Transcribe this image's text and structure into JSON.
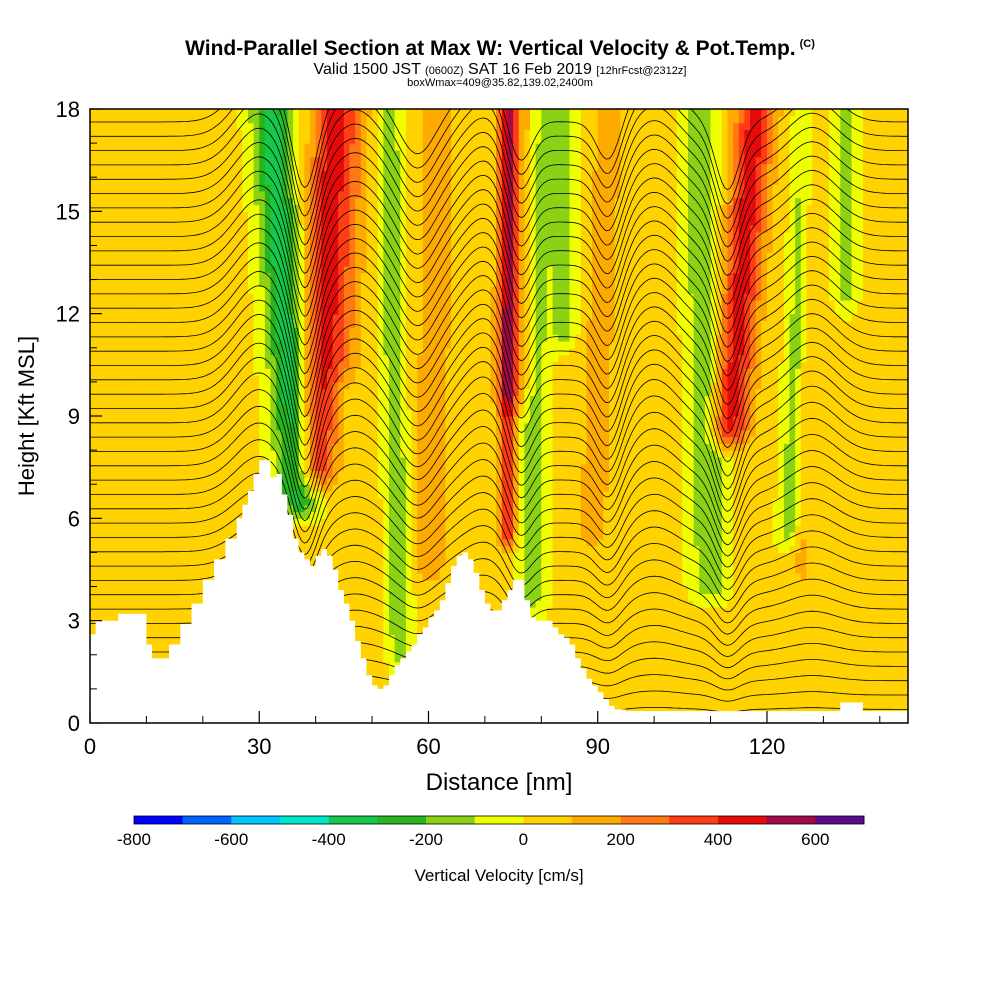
{
  "title": {
    "main": "Wind-Parallel Section at Max W: Vertical Velocity & Pot.Temp.",
    "copyright": "(C)",
    "valid_prefix": "Valid 1500 JST",
    "valid_utc": "(0600Z)",
    "valid_date": "SAT 16 Feb 2019",
    "forecast": "[12hrFcst@2312z]",
    "box_info": "boxWmax=409@35.82,139.02,2400m"
  },
  "chart_data": {
    "type": "heatmap",
    "xlabel": "Distance [nm]",
    "ylabel": "Height [Kft MSL]",
    "xlim": [
      0,
      145
    ],
    "ylim": [
      0,
      18
    ],
    "x_ticks": [
      0,
      30,
      60,
      90,
      120
    ],
    "x_minor_ticks": [
      10,
      20,
      40,
      50,
      70,
      80,
      100,
      110,
      130,
      140
    ],
    "y_ticks": [
      0,
      3,
      6,
      9,
      12,
      15,
      18
    ],
    "y_minor_ticks": [
      1,
      2,
      4,
      5,
      7,
      8,
      10,
      11,
      13,
      14,
      16,
      17
    ],
    "background_value_cm_s": 25,
    "colorbar": {
      "label": "Vertical Velocity [cm/s]",
      "min": -800,
      "max": 700,
      "step": 100,
      "tick_labels": [
        -800,
        -600,
        -400,
        -200,
        0,
        200,
        400,
        600
      ],
      "colors": [
        "#0000ff",
        "#0064ff",
        "#00c8ff",
        "#00e6c8",
        "#16c84a",
        "#28b41e",
        "#8cd214",
        "#f0ff00",
        "#ffd200",
        "#ffaa00",
        "#ff7814",
        "#ff3c14",
        "#e60a0a",
        "#a00a46",
        "#5a0a8c"
      ]
    },
    "terrain_kft": [
      [
        0,
        2.6
      ],
      [
        1,
        3.0
      ],
      [
        5,
        3.2
      ],
      [
        8,
        3.2
      ],
      [
        10,
        2.3
      ],
      [
        11,
        1.9
      ],
      [
        13,
        1.9
      ],
      [
        14,
        2.3
      ],
      [
        16,
        2.9
      ],
      [
        18,
        3.5
      ],
      [
        20,
        4.2
      ],
      [
        22,
        4.8
      ],
      [
        24,
        5.4
      ],
      [
        26,
        6.0
      ],
      [
        27,
        6.4
      ],
      [
        28,
        6.8
      ],
      [
        29,
        7.3
      ],
      [
        30,
        7.7
      ],
      [
        31,
        7.7
      ],
      [
        32,
        7.2
      ],
      [
        33,
        7.3
      ],
      [
        34,
        6.7
      ],
      [
        35,
        6.1
      ],
      [
        36,
        5.4
      ],
      [
        37,
        5.0
      ],
      [
        38,
        4.8
      ],
      [
        39,
        4.6
      ],
      [
        40,
        4.9
      ],
      [
        41,
        5.1
      ],
      [
        42,
        4.9
      ],
      [
        43,
        4.5
      ],
      [
        44,
        3.9
      ],
      [
        45,
        3.5
      ],
      [
        46,
        3.0
      ],
      [
        47,
        2.4
      ],
      [
        48,
        1.9
      ],
      [
        49,
        1.4
      ],
      [
        50,
        1.1
      ],
      [
        51,
        1.0
      ],
      [
        52,
        1.1
      ],
      [
        53,
        1.4
      ],
      [
        54,
        1.7
      ],
      [
        55,
        1.9
      ],
      [
        56,
        2.1
      ],
      [
        57,
        2.3
      ],
      [
        58,
        2.6
      ],
      [
        59,
        2.8
      ],
      [
        60,
        3.1
      ],
      [
        61,
        3.3
      ],
      [
        62,
        3.6
      ],
      [
        63,
        4.1
      ],
      [
        64,
        4.6
      ],
      [
        65,
        4.9
      ],
      [
        66,
        5.0
      ],
      [
        67,
        4.8
      ],
      [
        68,
        4.4
      ],
      [
        69,
        3.9
      ],
      [
        70,
        3.5
      ],
      [
        71,
        3.3
      ],
      [
        72,
        3.3
      ],
      [
        73,
        3.6
      ],
      [
        74,
        3.9
      ],
      [
        75,
        4.2
      ],
      [
        76,
        4.2
      ],
      [
        77,
        3.6
      ],
      [
        78,
        3.1
      ],
      [
        79,
        3.0
      ],
      [
        80,
        3.0
      ],
      [
        81,
        3.0
      ],
      [
        82,
        2.8
      ],
      [
        83,
        2.6
      ],
      [
        84,
        2.5
      ],
      [
        85,
        2.3
      ],
      [
        86,
        1.9
      ],
      [
        87,
        1.6
      ],
      [
        88,
        1.3
      ],
      [
        89,
        1.1
      ],
      [
        90,
        0.9
      ],
      [
        91,
        0.7
      ],
      [
        92,
        0.5
      ],
      [
        93,
        0.4
      ],
      [
        95,
        0.35
      ],
      [
        132,
        0.35
      ],
      [
        133,
        0.6
      ],
      [
        136,
        0.6
      ],
      [
        137,
        0.35
      ],
      [
        145,
        0.35
      ]
    ],
    "updrafts": [
      {
        "x": 40,
        "x_top": 43,
        "half_width_nm": 3.5,
        "z_bottom": 6.8,
        "peak_cm_s": 400
      },
      {
        "x": 45,
        "x_top": 47,
        "half_width_nm": 3,
        "z_bottom": 10,
        "peak_cm_s": 150
      },
      {
        "x": 60,
        "x_top": 62,
        "half_width_nm": 3,
        "z_bottom": 4,
        "peak_cm_s": 150
      },
      {
        "x": 74,
        "x_top": 74,
        "half_width_nm": 1.5,
        "z_bottom": 5,
        "peak_cm_s": 380
      },
      {
        "x": 75,
        "x_top": 76,
        "half_width_nm": 3.5,
        "z_bottom": 9,
        "peak_cm_s": 180
      },
      {
        "x": 89,
        "x_top": 92,
        "half_width_nm": 2.5,
        "z_bottom": 5,
        "peak_cm_s": 150
      },
      {
        "x": 113,
        "x_top": 118,
        "half_width_nm": 3.5,
        "z_bottom": 8,
        "peak_cm_s": 420
      },
      {
        "x": 126,
        "x_top": 128,
        "half_width_nm": 2,
        "z_bottom": 4,
        "peak_cm_s": 120
      }
    ],
    "downdrafts": [
      {
        "x": 37,
        "x_top": 32,
        "half_width_nm": 3.5,
        "z_bottom": 6,
        "peak_cm_s": -380
      },
      {
        "x": 55,
        "x_top": 53,
        "half_width_nm": 2,
        "z_bottom": 1.5,
        "peak_cm_s": -200
      },
      {
        "x": 78,
        "x_top": 80,
        "half_width_nm": 2.5,
        "z_bottom": 3,
        "peak_cm_s": -190
      },
      {
        "x": 84,
        "x_top": 84,
        "half_width_nm": 2,
        "z_bottom": 11,
        "peak_cm_s": -200
      },
      {
        "x": 110,
        "x_top": 108,
        "half_width_nm": 3,
        "z_bottom": 3.5,
        "peak_cm_s": -220
      },
      {
        "x": 124,
        "x_top": 127,
        "half_width_nm": 2,
        "z_bottom": 5,
        "peak_cm_s": -200
      },
      {
        "x": 134,
        "x_top": 134,
        "half_width_nm": 2,
        "z_bottom": 12,
        "peak_cm_s": -150
      }
    ],
    "potential_temperature_contours": {
      "count": 42,
      "base_height_kft": 0.4,
      "spacing_kft": 0.42,
      "wave_crests": [
        {
          "x": 30,
          "amplitude_kft": 1.5,
          "half_width_nm": 6
        },
        {
          "x": 47,
          "amplitude_kft": 1.2,
          "half_width_nm": 6
        },
        {
          "x": 70,
          "amplitude_kft": 1.4,
          "half_width_nm": 6
        },
        {
          "x": 100,
          "amplitude_kft": 1.3,
          "half_width_nm": 6
        },
        {
          "x": 128,
          "amplitude_kft": 1.1,
          "half_width_nm": 6
        }
      ],
      "wave_troughs": [
        {
          "x": 38,
          "amplitude_kft": -2.3,
          "half_width_nm": 3
        },
        {
          "x": 58,
          "amplitude_kft": -1.0,
          "half_width_nm": 4
        },
        {
          "x": 76,
          "amplitude_kft": -1.6,
          "half_width_nm": 3
        },
        {
          "x": 92,
          "amplitude_kft": -1.3,
          "half_width_nm": 3
        },
        {
          "x": 113,
          "amplitude_kft": -2.0,
          "half_width_nm": 3
        }
      ]
    }
  }
}
